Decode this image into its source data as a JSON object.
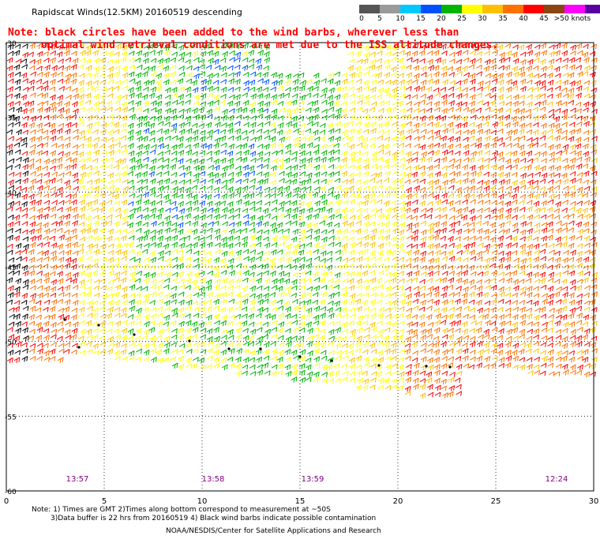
{
  "title": "Rapidscat Winds(12.5KM) 20160519 descending",
  "note_line1": "Note: black circles have been added to the wind barbs, wherever less than",
  "note_line2": "optimal wind retrieval conditions are met due to the ISS altitude changes.",
  "legend": {
    "labels": [
      "0",
      "5",
      "10",
      "15",
      "20",
      "25",
      "30",
      "35",
      "40",
      "45",
      ">50 knots"
    ],
    "colors": [
      "#555555",
      "#9a9a9a",
      "#00c8ff",
      "#0050ff",
      "#00b400",
      "#ffff00",
      "#ffc000",
      "#ff7000",
      "#ff0000",
      "#8b4513",
      "#ff00ff",
      "#5a00a0"
    ]
  },
  "x_axis": {
    "ticks": [
      "0",
      "5",
      "10",
      "15",
      "20",
      "25",
      "30"
    ]
  },
  "y_axis": {
    "ticks": [
      "-30",
      "-35",
      "-40",
      "-45",
      "-50",
      "-55",
      "-60"
    ]
  },
  "time_labels": [
    "13:57",
    "13:58",
    "13:59",
    "12:24"
  ],
  "footer": {
    "line1": "Note: 1) Times are GMT 2)Times along bottom correspond to measurement at ~50S",
    "line2": "3)Data buffer is 22 hrs from 20160519 4) Black wind barbs indicate possible contamination",
    "line3": "NOAA/NESDIS/Center for Satellite Applications and Research"
  },
  "colors": {
    "note": "#ff0000",
    "time_label": "#800080",
    "grid": "#000000"
  }
}
